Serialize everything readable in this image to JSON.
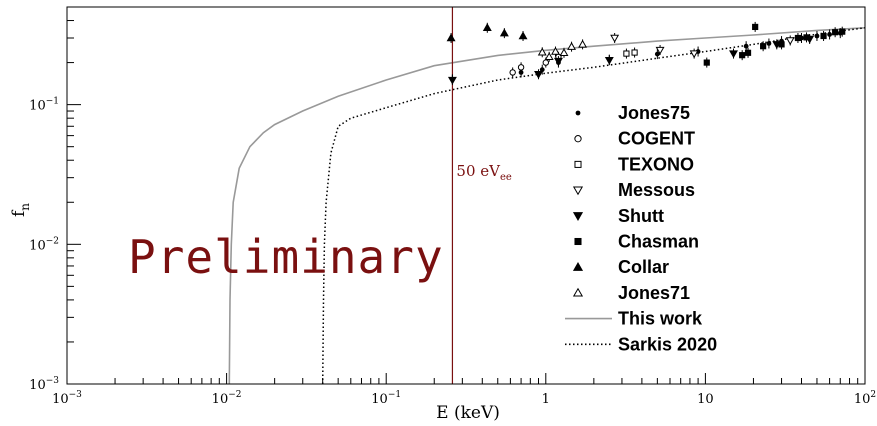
{
  "chart_data": {
    "type": "scatter",
    "xlabel": "E (keV)",
    "ylabel": "f",
    "ylabel_sub": "n",
    "xscale": "log",
    "yscale": "log",
    "xlim": [
      0.001,
      100
    ],
    "ylim": [
      0.001,
      0.5
    ],
    "x_ticks": [
      {
        "value": 0.001,
        "base": "10",
        "exp": "−3"
      },
      {
        "value": 0.01,
        "base": "10",
        "exp": "−2"
      },
      {
        "value": 0.1,
        "base": "10",
        "exp": "−1"
      },
      {
        "value": 1,
        "base": "1",
        "exp": ""
      },
      {
        "value": 10,
        "base": "10",
        "exp": ""
      },
      {
        "value": 100,
        "base": "10",
        "exp": "2"
      }
    ],
    "y_ticks": [
      {
        "value": 0.001,
        "base": "10",
        "exp": "−3"
      },
      {
        "value": 0.01,
        "base": "10",
        "exp": "−2"
      },
      {
        "value": 0.1,
        "base": "10",
        "exp": "−1"
      }
    ],
    "watermark": "Preliminary",
    "vertical_line": {
      "x": 0.26,
      "label": "50 eV",
      "label_sub": "ee",
      "color": "#7a1010"
    },
    "curves": [
      {
        "name": "This work",
        "style": "solid",
        "color": "#999999",
        "points": [
          [
            0.0104,
            0.001
          ],
          [
            0.0105,
            0.004
          ],
          [
            0.0107,
            0.01
          ],
          [
            0.011,
            0.02
          ],
          [
            0.012,
            0.035
          ],
          [
            0.014,
            0.05
          ],
          [
            0.017,
            0.063
          ],
          [
            0.02,
            0.072
          ],
          [
            0.03,
            0.09
          ],
          [
            0.05,
            0.115
          ],
          [
            0.1,
            0.15
          ],
          [
            0.2,
            0.19
          ],
          [
            0.5,
            0.225
          ],
          [
            1,
            0.245
          ],
          [
            2,
            0.262
          ],
          [
            5,
            0.285
          ],
          [
            10,
            0.3
          ],
          [
            20,
            0.315
          ],
          [
            50,
            0.34
          ],
          [
            100,
            0.355
          ]
        ]
      },
      {
        "name": "Sarkis 2020",
        "style": "dotted",
        "color": "#000000",
        "points": [
          [
            0.04,
            0.001
          ],
          [
            0.0405,
            0.004
          ],
          [
            0.041,
            0.01
          ],
          [
            0.042,
            0.02
          ],
          [
            0.045,
            0.045
          ],
          [
            0.05,
            0.07
          ],
          [
            0.06,
            0.08
          ],
          [
            0.1,
            0.095
          ],
          [
            0.2,
            0.12
          ],
          [
            0.5,
            0.15
          ],
          [
            1,
            0.168
          ],
          [
            2,
            0.185
          ],
          [
            5,
            0.215
          ],
          [
            10,
            0.24
          ],
          [
            20,
            0.27
          ],
          [
            50,
            0.32
          ],
          [
            100,
            0.355
          ]
        ]
      }
    ],
    "series": [
      {
        "name": "Jones75",
        "marker": "dot",
        "points": [
          [
            0.26,
            0.152
          ],
          [
            0.7,
            0.17
          ],
          [
            0.95,
            0.178
          ],
          [
            1.2,
            0.2
          ],
          [
            2.5,
            0.21
          ],
          [
            5,
            0.23
          ],
          [
            9,
            0.24
          ],
          [
            18,
            0.262
          ],
          [
            25,
            0.274
          ],
          [
            30,
            0.285
          ],
          [
            40,
            0.3
          ],
          [
            50,
            0.31
          ],
          [
            60,
            0.318
          ],
          [
            70,
            0.325
          ]
        ]
      },
      {
        "name": "COGENT",
        "marker": "circle-open",
        "points": [
          [
            0.62,
            0.17
          ],
          [
            0.7,
            0.185
          ],
          [
            1.0,
            0.2
          ],
          [
            1.2,
            0.22
          ]
        ]
      },
      {
        "name": "TEXONO",
        "marker": "square-open",
        "points": [
          [
            3.2,
            0.232
          ],
          [
            3.6,
            0.236
          ]
        ]
      },
      {
        "name": "Messous",
        "marker": "triangle-down-open",
        "points": [
          [
            2.7,
            0.3
          ],
          [
            5.2,
            0.246
          ],
          [
            8.5,
            0.232
          ],
          [
            34,
            0.288
          ]
        ]
      },
      {
        "name": "Shutt",
        "marker": "triangle-down",
        "points": [
          [
            0.26,
            0.15
          ],
          [
            0.9,
            0.165
          ],
          [
            1.2,
            0.205
          ],
          [
            2.5,
            0.208
          ],
          [
            15,
            0.232
          ],
          [
            28,
            0.27
          ],
          [
            45,
            0.295
          ]
        ]
      },
      {
        "name": "Chasman",
        "marker": "square",
        "points": [
          [
            10.2,
            0.2
          ],
          [
            17,
            0.226
          ],
          [
            18.5,
            0.235
          ],
          [
            20.5,
            0.36
          ],
          [
            23,
            0.262
          ],
          [
            30,
            0.27
          ],
          [
            38,
            0.3
          ],
          [
            43,
            0.303
          ],
          [
            55,
            0.31
          ],
          [
            65,
            0.33
          ],
          [
            72,
            0.333
          ]
        ]
      },
      {
        "name": "Collar",
        "marker": "triangle-up",
        "points": [
          [
            0.255,
            0.3
          ],
          [
            0.43,
            0.355
          ],
          [
            0.55,
            0.325
          ],
          [
            0.72,
            0.31
          ]
        ]
      },
      {
        "name": "Jones71",
        "marker": "triangle-up-open",
        "points": [
          [
            0.95,
            0.237
          ],
          [
            1.05,
            0.22
          ],
          [
            1.15,
            0.24
          ],
          [
            1.3,
            0.235
          ],
          [
            1.45,
            0.26
          ],
          [
            1.7,
            0.27
          ]
        ]
      }
    ],
    "legend": {
      "placement": "right",
      "entries": [
        "Jones75",
        "COGENT",
        "TEXONO",
        "Messous",
        "Shutt",
        "Chasman",
        "Collar",
        "Jones71",
        "This work",
        "Sarkis 2020"
      ]
    }
  }
}
